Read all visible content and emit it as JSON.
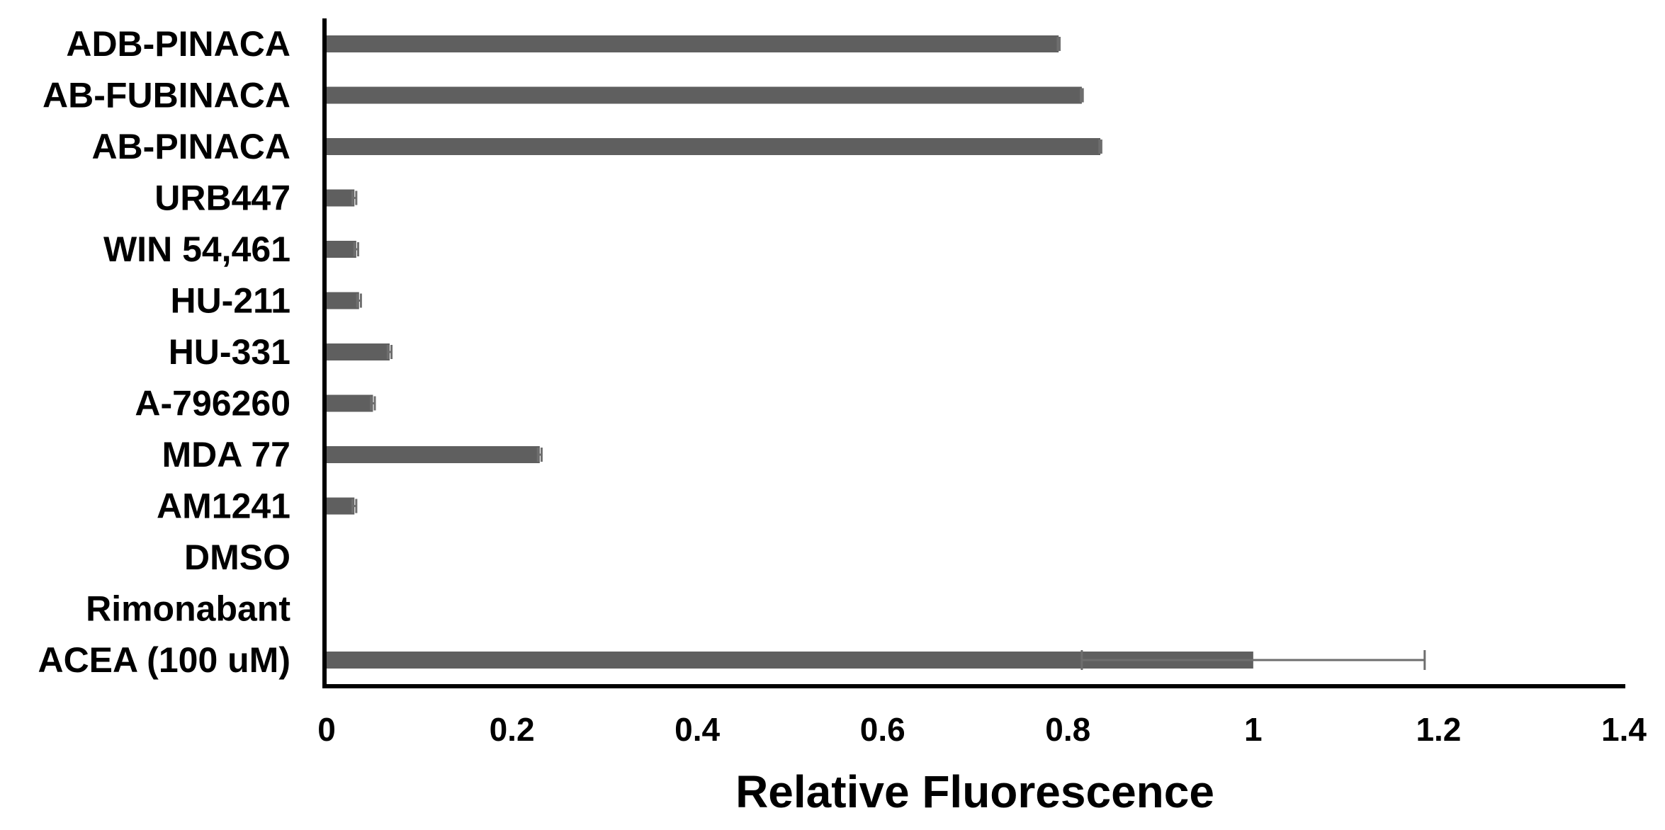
{
  "chart_data": {
    "type": "bar",
    "orientation": "horizontal",
    "title": "",
    "xlabel": "Relative Fluorescence",
    "ylabel": "",
    "xlim": [
      0,
      1.4
    ],
    "xticks": [
      "0",
      "0.2",
      "0.4",
      "0.6",
      "0.8",
      "1",
      "1.2",
      "1.4"
    ],
    "grid": false,
    "legend": "none",
    "bar_color": "#5f5f5f",
    "error_color": "#6e6e6e",
    "categories": [
      "ADB-PINACA",
      "AB-FUBINACA",
      "AB-PINACA",
      "URB447",
      "WIN 54,461",
      "HU-211",
      "HU-331",
      "A-796260",
      "MDA 77",
      "AM1241",
      "DMSO",
      "Rimonabant",
      "ACEA (100 uM)"
    ],
    "values": [
      0.79,
      0.815,
      0.835,
      0.03,
      0.032,
      0.035,
      0.068,
      0.05,
      0.23,
      0.03,
      0,
      0,
      1.0
    ],
    "errors": [
      0.001,
      0.001,
      0.001,
      0.002,
      0.002,
      0.002,
      0.002,
      0.002,
      0.002,
      0.002,
      0,
      0,
      0.185
    ]
  }
}
